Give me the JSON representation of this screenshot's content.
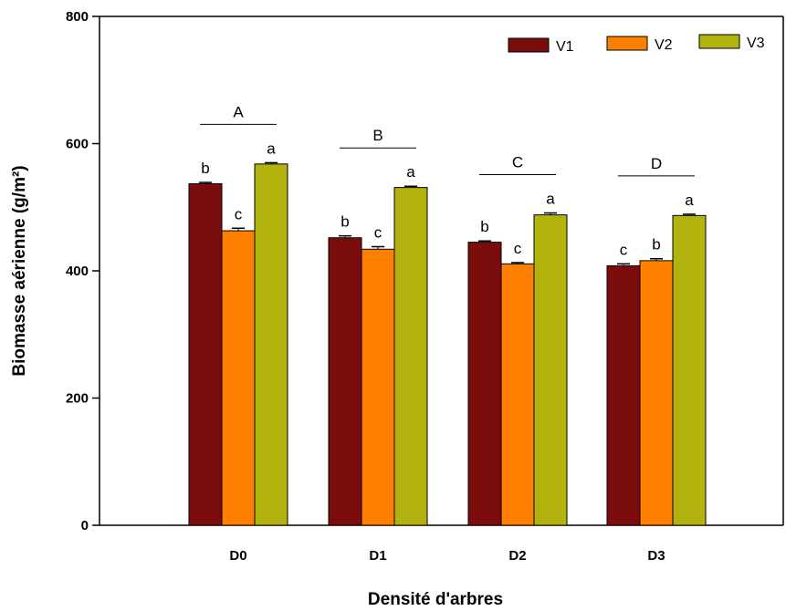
{
  "chart_data": {
    "type": "bar",
    "xlabel": "Densité d'arbres",
    "ylabel": "Biomasse aérienne (g/m²)",
    "categories": [
      "D0",
      "D1",
      "D2",
      "D3"
    ],
    "ylim": [
      0,
      800
    ],
    "yticks": [
      0,
      200,
      400,
      600,
      800
    ],
    "legend_position": "top-right",
    "series": [
      {
        "name": "V1",
        "color": "#7b0c0c",
        "values": [
          537,
          452,
          445,
          408
        ],
        "errors": [
          2,
          3,
          2,
          3
        ],
        "letters": [
          "b",
          "b",
          "b",
          "c"
        ]
      },
      {
        "name": "V2",
        "color": "#ff8000",
        "values": [
          463,
          434,
          411,
          416
        ],
        "errors": [
          4,
          4,
          2,
          3
        ],
        "letters": [
          "c",
          "c",
          "c",
          "b"
        ]
      },
      {
        "name": "V3",
        "color": "#b3b30f",
        "values": [
          568,
          531,
          488,
          487
        ],
        "errors": [
          2,
          2,
          3,
          2
        ],
        "letters": [
          "a",
          "a",
          "a",
          "a"
        ]
      }
    ],
    "group_letters": [
      "A",
      "B",
      "C",
      "D"
    ]
  }
}
